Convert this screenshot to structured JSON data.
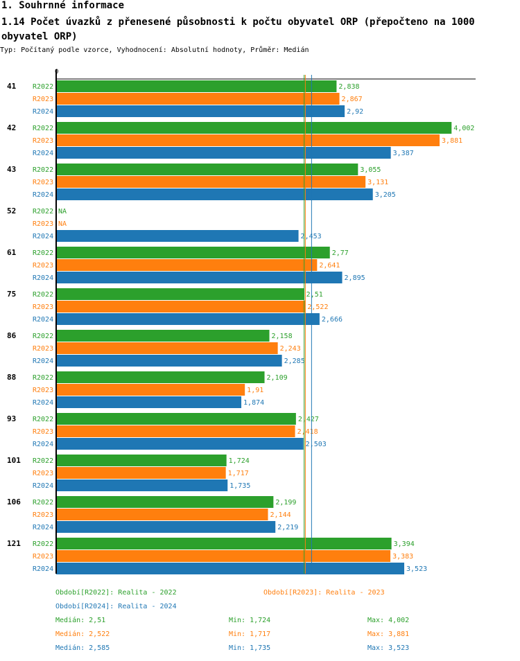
{
  "header": {
    "section": "1. Souhrnné informace",
    "title": "1.14 Počet úvazků z přenesené působnosti k počtu obyvatel ORP (přepočteno na 1000 obyvatel ORP)",
    "subtitle": "Typ: Počítaný podle vzorce, Vyhodnocení: Absolutní hodnoty, Průměr: Medián"
  },
  "chart_data": {
    "type": "bar",
    "orientation": "horizontal",
    "title": "1.14 Počet úvazků z přenesené působnosti k počtu obyvatel ORP (přepočteno na 1000 obyvatel ORP)",
    "x_axis_label": "0",
    "xlim": [
      0,
      4.25
    ],
    "categories": [
      "41",
      "42",
      "43",
      "52",
      "61",
      "75",
      "86",
      "88",
      "93",
      "101",
      "106",
      "121"
    ],
    "series": [
      {
        "name": "R2022",
        "color": "#2ca02c",
        "values": [
          2.838,
          4.002,
          3.055,
          null,
          2.77,
          2.51,
          2.158,
          2.109,
          2.427,
          1.724,
          2.199,
          3.394
        ],
        "labels": [
          "2,838",
          "4,002",
          "3,055",
          "NA",
          "2,77",
          "2,51",
          "2,158",
          "2,109",
          "2,427",
          "1,724",
          "2,199",
          "3,394"
        ]
      },
      {
        "name": "R2023",
        "color": "#ff7f0e",
        "values": [
          2.867,
          3.881,
          3.131,
          null,
          2.641,
          2.522,
          2.243,
          1.91,
          2.418,
          1.717,
          2.144,
          3.383
        ],
        "labels": [
          "2,867",
          "3,881",
          "3,131",
          "NA",
          "2,641",
          "2,522",
          "2,243",
          "1,91",
          "2,418",
          "1,717",
          "2,144",
          "3,383"
        ]
      },
      {
        "name": "R2024",
        "color": "#1f77b4",
        "values": [
          2.92,
          3.387,
          3.205,
          2.453,
          2.895,
          2.666,
          2.285,
          1.874,
          2.503,
          1.735,
          2.219,
          3.523
        ],
        "labels": [
          "2,92",
          "3,387",
          "3,205",
          "2,453",
          "2,895",
          "2,666",
          "2,285",
          "1,874",
          "2,503",
          "1,735",
          "2,219",
          "3,523"
        ]
      }
    ],
    "medians": [
      {
        "series": "R2022",
        "value": 2.51
      },
      {
        "series": "R2023",
        "value": 2.522
      },
      {
        "series": "R2024",
        "value": 2.585
      }
    ]
  },
  "legend": {
    "periods": [
      {
        "text": "Období[R2022]: Realita - 2022",
        "color": "#2ca02c"
      },
      {
        "text": "Období[R2023]: Realita - 2023",
        "color": "#ff7f0e"
      },
      {
        "text": "Období[R2024]: Realita - 2024",
        "color": "#1f77b4"
      }
    ],
    "stats": [
      {
        "median": "Medián: 2,51",
        "min": "Min: 1,724",
        "max": "Max: 4,002",
        "color": "#2ca02c"
      },
      {
        "median": "Medián: 2,522",
        "min": "Min: 1,717",
        "max": "Max: 3,881",
        "color": "#ff7f0e"
      },
      {
        "median": "Medián: 2,585",
        "min": "Min: 1,735",
        "max": "Max: 3,523",
        "color": "#1f77b4"
      }
    ]
  }
}
